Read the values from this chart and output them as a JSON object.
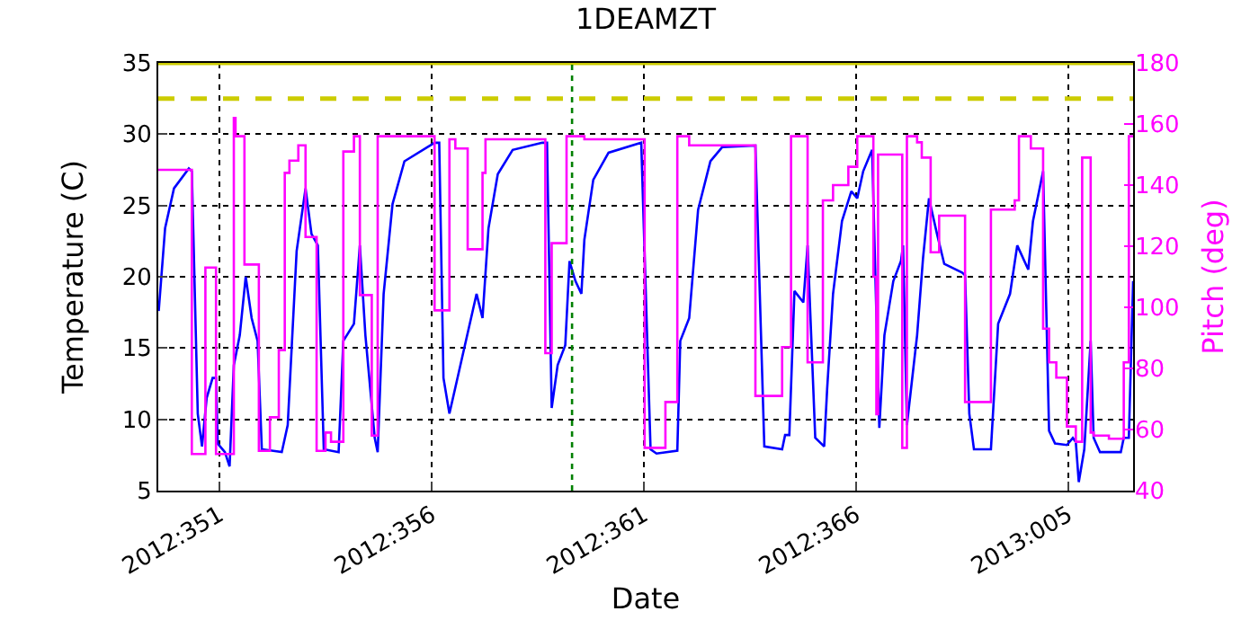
{
  "chart_data": {
    "type": "line",
    "title": "1DEAMZT",
    "xlabel": "Date",
    "ylabel": "Temperature (C)",
    "y2label": "Pitch (deg)",
    "xlim": [
      "2012-12-14T13:26",
      "2013-01-06T12:43"
    ],
    "xticks": [
      {
        "value": "2012-12-16",
        "label": "2012:351"
      },
      {
        "value": "2012-12-21",
        "label": "2012:356"
      },
      {
        "value": "2012-12-26",
        "label": "2012:361"
      },
      {
        "value": "2012-12-31",
        "label": "2012:366"
      },
      {
        "value": "2013-01-05",
        "label": "2013:005"
      }
    ],
    "ylim": [
      5,
      35
    ],
    "yticks": [
      5,
      10,
      15,
      20,
      25,
      30,
      35
    ],
    "y2lim": [
      40,
      180
    ],
    "y2ticks": [
      40,
      60,
      80,
      100,
      120,
      140,
      160,
      180
    ],
    "grid": true,
    "marker": "none",
    "line_style": "solid",
    "ref_lines": [
      {
        "axis": "y",
        "value": 32.5,
        "label": null,
        "color": "#cccc00",
        "line_style": "dashed"
      },
      {
        "axis": "y",
        "value": 35,
        "label": null,
        "color": "#cccc00",
        "line_style": "solid"
      },
      {
        "axis": "x",
        "value": "2012-12-24T07:26",
        "label": null,
        "color": "#008000",
        "line_style": "dotted"
      }
    ],
    "series": [
      {
        "color": "#0000ff",
        "x": [
          "2012-12-14T13:41",
          "2012-12-14T17:17",
          "2012-12-14T22:19",
          "2012-12-15T06:43",
          "2012-12-15T08:24",
          "2012-12-15T11:46",
          "2012-12-15T14:10",
          "2012-12-15T16:48",
          "2012-12-15T20:10",
          "2012-12-15T22:05",
          "2012-12-15T23:02",
          "2012-12-16T03:07",
          "2012-12-16T05:46",
          "2012-12-16T08:10",
          "2012-12-16T11:31",
          "2012-12-16T14:53",
          "2012-12-16T18:14",
          "2012-12-16T21:36",
          "2012-12-17T00:00",
          "2012-12-17T11:17",
          "2012-12-17T14:38",
          "2012-12-17T19:41",
          "2012-12-18T00:43",
          "2012-12-18T04:05",
          "2012-12-18T07:41",
          "2012-12-18T11:02",
          "2012-12-18T19:26",
          "2012-12-18T22:05",
          "2012-12-19T04:05",
          "2012-12-19T07:26",
          "2012-12-19T10:34",
          "2012-12-19T15:50",
          "2012-12-19T17:31",
          "2012-12-19T20:53",
          "2012-12-20T01:55",
          "2012-12-20T08:38",
          "2012-12-21T01:41",
          "2012-12-21T04:19",
          "2012-12-21T06:43",
          "2012-12-21T10:05",
          "2012-12-22T01:26",
          "2012-12-22T04:48",
          "2012-12-22T08:10",
          "2012-12-22T13:26",
          "2012-12-22T21:50",
          "2012-12-23T14:38",
          "2012-12-23T17:17",
          "2012-12-23T19:55",
          "2012-12-23T23:17",
          "2012-12-24T03:36",
          "2012-12-24T06:00",
          "2012-12-24T09:22",
          "2012-12-24T12:43",
          "2012-12-24T14:24",
          "2012-12-24T19:26",
          "2012-12-25T04:05",
          "2012-12-25T22:34",
          "2012-12-26T03:50",
          "2012-12-26T07:12",
          "2012-12-26T18:58",
          "2012-12-26T20:38",
          "2012-12-27T01:41",
          "2012-12-27T06:43",
          "2012-12-27T13:41",
          "2012-12-27T20:24",
          "2012-12-28T15:07",
          "2012-12-28T20:10",
          "2012-12-29T06:14",
          "2012-12-29T07:55",
          "2012-12-29T10:19",
          "2012-12-29T13:12",
          "2012-12-29T18:14",
          "2012-12-29T20:38",
          "2012-12-30T00:58",
          "2012-12-30T06:00",
          "2012-12-30T07:41",
          "2012-12-30T11:02",
          "2012-12-30T16:05",
          "2012-12-30T21:22",
          "2012-12-31T00:43",
          "2012-12-31T04:05",
          "2012-12-31T09:07",
          "2012-12-31T13:12",
          "2012-12-31T16:05",
          "2012-12-31T21:07",
          "2013-01-01T01:26",
          "2013-01-01T02:38",
          "2013-01-01T04:48",
          "2013-01-01T10:34",
          "2013-01-01T13:55",
          "2013-01-01T17:17",
          "2013-01-01T21:50",
          "2013-01-02T01:55",
          "2013-01-02T12:00",
          "2013-01-02T13:41",
          "2013-01-02T16:05",
          "2013-01-02T18:43",
          "2013-01-03T04:19",
          "2013-01-03T08:24",
          "2013-01-03T15:07",
          "2013-01-03T19:12",
          "2013-01-04T01:26",
          "2013-01-04T04:05",
          "2013-01-04T09:50",
          "2013-01-04T13:12",
          "2013-01-04T16:34",
          "2013-01-04T23:17",
          "2013-01-05T02:38",
          "2013-01-05T04:19",
          "2013-01-05T06:00",
          "2013-01-05T09:07",
          "2013-01-05T12:43",
          "2013-01-05T14:24",
          "2013-01-05T18:00",
          "2013-01-06T05:46",
          "2013-01-06T07:26",
          "2013-01-06T10:19",
          "2013-01-06T12:43"
        ],
        "values": [
          17.6,
          23.4,
          26.2,
          27.6,
          27.4,
          10.4,
          8.1,
          11.5,
          12.9,
          12.9,
          8.3,
          7.7,
          6.7,
          13.8,
          15.9,
          20.0,
          17.1,
          15.5,
          7.9,
          7.7,
          9.6,
          21.8,
          26.2,
          23.0,
          22.2,
          7.9,
          7.7,
          15.5,
          16.7,
          22.2,
          15.9,
          8.7,
          7.7,
          18.8,
          25.1,
          28.1,
          29.4,
          29.4,
          12.9,
          10.4,
          18.8,
          17.1,
          23.4,
          27.2,
          28.9,
          29.4,
          29.4,
          10.8,
          13.8,
          15.2,
          21.1,
          19.7,
          18.8,
          22.6,
          26.8,
          28.7,
          29.4,
          7.9,
          7.6,
          7.8,
          15.5,
          17.1,
          24.7,
          28.1,
          29.1,
          29.2,
          8.1,
          7.9,
          8.9,
          8.9,
          19.0,
          18.2,
          22.2,
          8.7,
          8.1,
          12.1,
          18.8,
          23.9,
          26.0,
          25.5,
          27.4,
          28.9,
          9.4,
          15.9,
          19.7,
          21.1,
          22.2,
          9.6,
          15.9,
          21.3,
          25.5,
          23.0,
          20.9,
          20.3,
          20.1,
          10.4,
          7.9,
          7.9,
          16.7,
          18.8,
          22.2,
          20.5,
          23.9,
          27.4,
          9.2,
          8.3,
          8.2,
          8.7,
          8.4,
          5.6,
          7.9,
          15.5,
          8.7,
          7.7,
          7.7,
          8.7,
          8.7,
          19.7
        ]
      },
      {
        "type": "step",
        "axis": "y2",
        "color": "#ff00ff",
        "x": [
          "2012-12-14T13:26",
          "2012-12-15T08:24",
          "2012-12-15T16:05",
          "2012-12-15T22:05",
          "2012-12-16T08:10",
          "2012-12-16T09:07",
          "2012-12-16T14:10",
          "2012-12-16T22:19",
          "2012-12-17T04:34",
          "2012-12-17T09:36",
          "2012-12-17T12:58",
          "2012-12-17T15:36",
          "2012-12-17T20:38",
          "2012-12-18T00:43",
          "2012-12-18T06:58",
          "2012-12-18T12:00",
          "2012-12-18T15:07",
          "2012-12-18T22:05",
          "2012-12-19T04:05",
          "2012-12-19T07:26",
          "2012-12-19T14:10",
          "2012-12-19T17:31",
          "2012-12-21T01:41",
          "2012-12-21T10:05",
          "2012-12-21T13:26",
          "2012-12-21T20:24",
          "2012-12-22T04:48",
          "2012-12-22T06:29",
          "2012-12-23T16:19",
          "2012-12-23T19:55",
          "2012-12-24T04:19",
          "2012-12-24T14:24",
          "2012-12-26T00:29",
          "2012-12-26T12:14",
          "2012-12-26T18:58",
          "2012-12-27T01:41",
          "2012-12-28T15:07",
          "2012-12-29T06:14",
          "2012-12-29T11:17",
          "2012-12-29T20:38",
          "2012-12-30T05:17",
          "2012-12-30T11:02",
          "2012-12-30T19:41",
          "2012-12-31T00:43",
          "2012-12-31T09:50",
          "2012-12-31T11:31",
          "2012-12-31T12:29",
          "2013-01-01T02:10",
          "2013-01-01T04:48",
          "2013-01-01T10:34",
          "2013-01-01T13:12",
          "2013-01-01T18:14",
          "2013-01-01T23:02",
          "2013-01-02T13:41",
          "2013-01-03T04:19",
          "2013-01-03T17:46",
          "2013-01-03T20:10",
          "2013-01-04T02:53",
          "2013-01-04T09:50",
          "2013-01-04T13:12",
          "2013-01-04T17:17",
          "2013-01-04T23:17",
          "2013-01-05T04:19",
          "2013-01-05T07:55",
          "2013-01-05T12:43",
          "2013-01-05T14:24",
          "2013-01-05T23:02",
          "2013-01-06T07:26",
          "2013-01-06T10:19",
          "2013-01-06T12:43"
        ],
        "values": [
          145,
          52,
          113,
          52,
          162,
          156,
          114,
          53,
          64,
          86,
          144,
          148,
          153,
          123,
          53,
          59,
          56,
          151,
          156,
          104,
          58,
          156,
          99,
          155,
          152,
          119,
          144,
          155,
          85,
          121,
          156,
          155,
          54,
          69,
          156,
          153,
          71,
          87,
          156,
          82,
          135,
          140,
          146,
          156,
          110,
          65,
          150,
          54,
          156,
          154,
          149,
          118,
          130,
          69,
          132,
          135,
          156,
          152,
          93,
          82,
          77,
          61,
          56,
          149,
          59,
          58,
          57,
          82,
          156,
          156
        ]
      }
    ]
  }
}
